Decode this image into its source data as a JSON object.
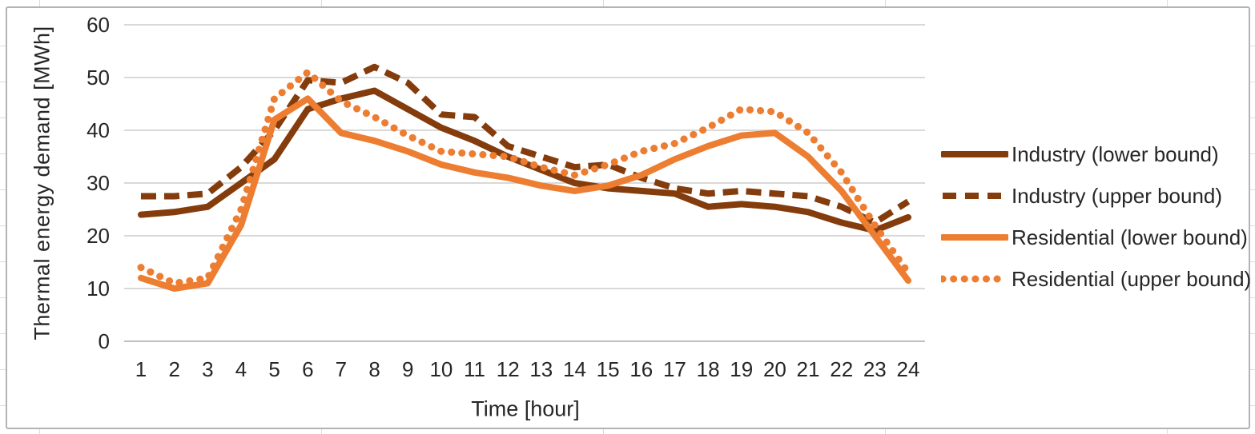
{
  "chart_data": {
    "type": "line",
    "title": "",
    "xlabel": "Time [hour]",
    "ylabel": "Thermal energy demand [MWh]",
    "x": [
      1,
      2,
      3,
      4,
      5,
      6,
      7,
      8,
      9,
      10,
      11,
      12,
      13,
      14,
      15,
      16,
      17,
      18,
      19,
      20,
      21,
      22,
      23,
      24
    ],
    "ylim": [
      0,
      60
    ],
    "yticks": [
      0,
      10,
      20,
      30,
      40,
      50,
      60
    ],
    "grid": "horizontal",
    "legend_position": "right",
    "series": [
      {
        "name": "Industry (lower bound)",
        "style": "solid",
        "color": "#843C0C",
        "values": [
          24,
          24.5,
          25.5,
          30,
          34.5,
          44,
          46,
          47.5,
          44,
          40.5,
          38,
          35,
          32.5,
          30,
          29,
          28.5,
          28,
          25.5,
          26,
          25.5,
          24.5,
          22.5,
          21,
          23.5
        ]
      },
      {
        "name": "Industry (upper bound)",
        "style": "dashed",
        "color": "#843C0C",
        "values": [
          27.5,
          27.5,
          28,
          33,
          40,
          49.5,
          49,
          52,
          49,
          43,
          42.5,
          37,
          35,
          33,
          33.5,
          31,
          29,
          28,
          28.5,
          28,
          27.5,
          25.5,
          22.5,
          26.5
        ]
      },
      {
        "name": "Residential (lower bound)",
        "style": "solid",
        "color": "#ED7D31",
        "values": [
          12,
          10,
          11,
          22,
          42,
          46,
          39.5,
          38,
          36,
          33.5,
          32,
          31,
          29.5,
          28.5,
          29.5,
          31.5,
          34.5,
          37,
          39,
          39.5,
          35,
          28.5,
          20,
          11.5
        ]
      },
      {
        "name": "Residential (upper bound)",
        "style": "dotted",
        "color": "#ED7D31",
        "values": [
          14,
          11,
          12,
          25,
          46,
          51,
          45.5,
          42.5,
          39,
          36,
          35.5,
          35,
          33,
          31.5,
          33.5,
          36,
          37.5,
          40.5,
          44,
          43.5,
          39.5,
          32,
          22,
          13
        ]
      }
    ]
  },
  "colors": {
    "industry": "#843C0C",
    "residential": "#ED7D31",
    "gridline": "#D9D9D9",
    "axis_line": "#BFBFBF",
    "text": "#262626",
    "chart_border": "#B3B3B3"
  }
}
